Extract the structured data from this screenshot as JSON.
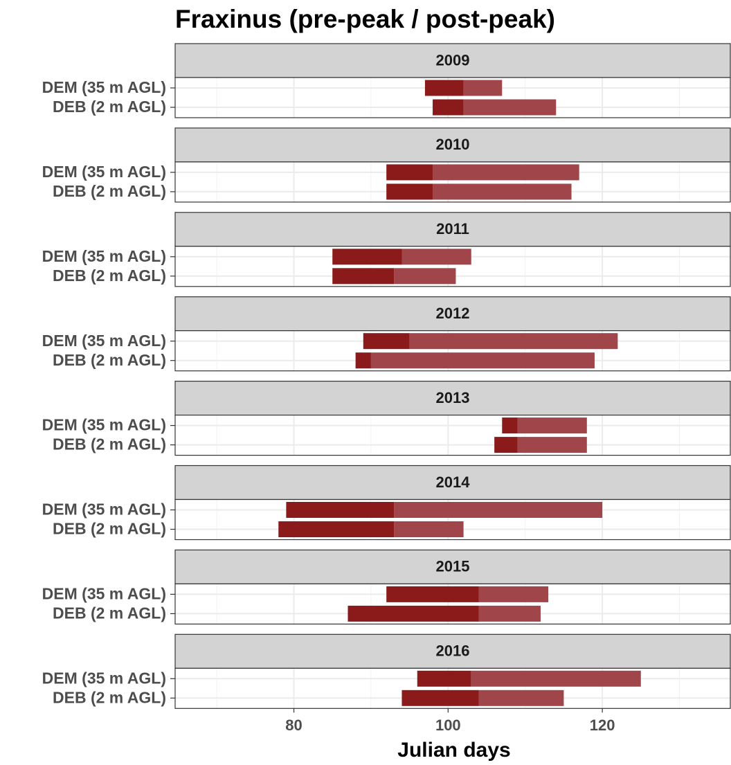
{
  "chart_data": {
    "type": "range-bar",
    "title": "Fraxinus (pre-peak / post-peak)",
    "x_label": "Julian days",
    "categories": [
      "DEM (35 m AGL)",
      "DEB (2 m AGL)"
    ],
    "pre_color": "#8b1a1a",
    "post_color": "#a0464b",
    "xlim": [
      64.6,
      136.6
    ],
    "xticks": [
      80,
      100,
      120
    ],
    "xminor": [
      70,
      90,
      110,
      130
    ],
    "grid": true,
    "facets": [
      {
        "title": "2009",
        "start": [
          97,
          98
        ],
        "peak": [
          102,
          102
        ],
        "end": [
          107,
          114
        ]
      },
      {
        "title": "2010",
        "start": [
          92,
          92
        ],
        "peak": [
          98,
          98
        ],
        "end": [
          117,
          116
        ]
      },
      {
        "title": "2011",
        "start": [
          85,
          85
        ],
        "peak": [
          94,
          93
        ],
        "end": [
          103,
          101
        ]
      },
      {
        "title": "2012",
        "start": [
          89,
          88
        ],
        "peak": [
          95,
          90
        ],
        "end": [
          122,
          119
        ]
      },
      {
        "title": "2013",
        "start": [
          107,
          106
        ],
        "peak": [
          109,
          109
        ],
        "end": [
          118,
          118
        ]
      },
      {
        "title": "2014",
        "start": [
          79,
          78
        ],
        "peak": [
          93,
          93
        ],
        "end": [
          120,
          102
        ]
      },
      {
        "title": "2015",
        "start": [
          92,
          87
        ],
        "peak": [
          104,
          104
        ],
        "end": [
          113,
          112
        ]
      },
      {
        "title": "2016",
        "start": [
          96,
          94
        ],
        "peak": [
          103,
          104
        ],
        "end": [
          125,
          115
        ]
      }
    ]
  }
}
